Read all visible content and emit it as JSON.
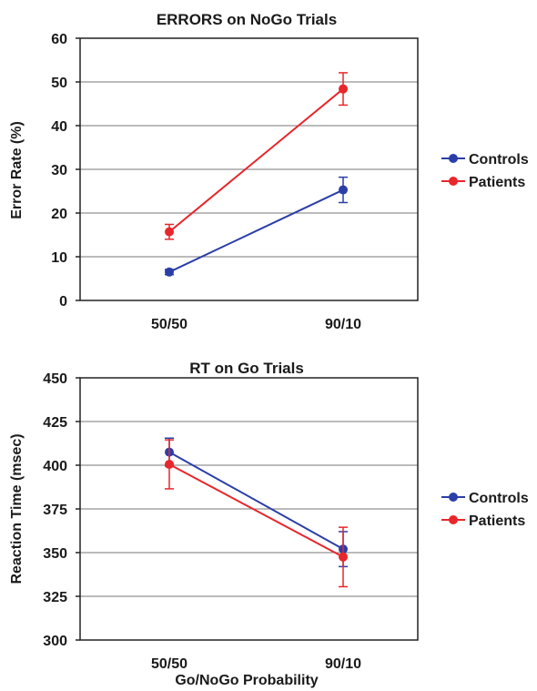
{
  "chart_data": [
    {
      "type": "line",
      "title": "ERRORS on NoGo Trials",
      "xlabel": "",
      "ylabel": "Error Rate (%)",
      "categories": [
        "50/50",
        "90/10"
      ],
      "ylim": [
        0,
        60
      ],
      "yticks": [
        0,
        10,
        20,
        30,
        40,
        50,
        60
      ],
      "grid": true,
      "legend_position": "right",
      "series": [
        {
          "name": "Controls",
          "color": "#2b3ea8",
          "values": [
            6.5,
            25.3
          ],
          "errors": [
            0.6,
            2.9
          ]
        },
        {
          "name": "Patients",
          "color": "#e8262b",
          "values": [
            15.7,
            48.4
          ],
          "errors": [
            1.7,
            3.7
          ]
        }
      ]
    },
    {
      "type": "line",
      "title": "RT on Go Trials",
      "xlabel": "Go/NoGo Probability",
      "ylabel": "Reaction Time (msec)",
      "categories": [
        "50/50",
        "90/10"
      ],
      "ylim": [
        300,
        450
      ],
      "yticks": [
        300,
        325,
        350,
        375,
        400,
        425,
        450
      ],
      "grid": true,
      "legend_position": "right",
      "series": [
        {
          "name": "Controls",
          "color": "#2b3ea8",
          "values": [
            407.5,
            352
          ],
          "errors": [
            8,
            10
          ]
        },
        {
          "name": "Patients",
          "color": "#e8262b",
          "values": [
            400.5,
            347.5
          ],
          "errors": [
            14,
            17
          ]
        }
      ]
    }
  ]
}
